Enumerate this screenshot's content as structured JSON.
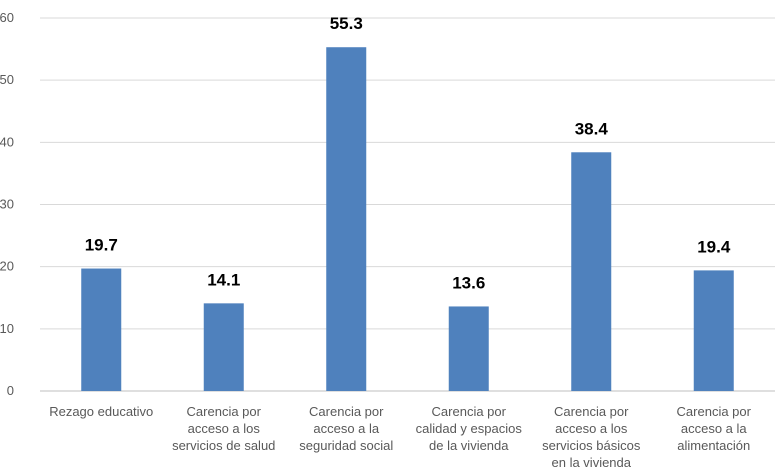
{
  "chart_data": {
    "type": "bar",
    "title": "",
    "xlabel": "",
    "ylabel": "",
    "ylim": [
      0,
      60
    ],
    "yticks": [
      0,
      10,
      20,
      30,
      40,
      50,
      60
    ],
    "grid": true,
    "legend": "none",
    "bar_color": "#4f81bd",
    "categories": [
      "Rezago educativo",
      "Carencia por acceso a los servicios de salud",
      "Carencia por acceso a la seguridad social",
      "Carencia por calidad y espacios de la vivienda",
      "Carencia por acceso a los servicios básicos en la vivienda",
      "Carencia por acceso a la alimentación"
    ],
    "category_lines": [
      [
        "Rezago educativo"
      ],
      [
        "Carencia por",
        "acceso a los",
        "servicios de salud"
      ],
      [
        "Carencia por",
        "acceso a la",
        "seguridad social"
      ],
      [
        "Carencia por",
        "calidad y espacios",
        "de la vivienda"
      ],
      [
        "Carencia por",
        "acceso a los",
        "servicios básicos",
        "en la vivienda"
      ],
      [
        "Carencia por",
        "acceso a la",
        "alimentación"
      ]
    ],
    "values": [
      19.7,
      14.1,
      55.3,
      13.6,
      38.4,
      19.4
    ],
    "value_labels": [
      "19.7",
      "14.1",
      "55.3",
      "13.6",
      "38.4",
      "19.4"
    ]
  }
}
